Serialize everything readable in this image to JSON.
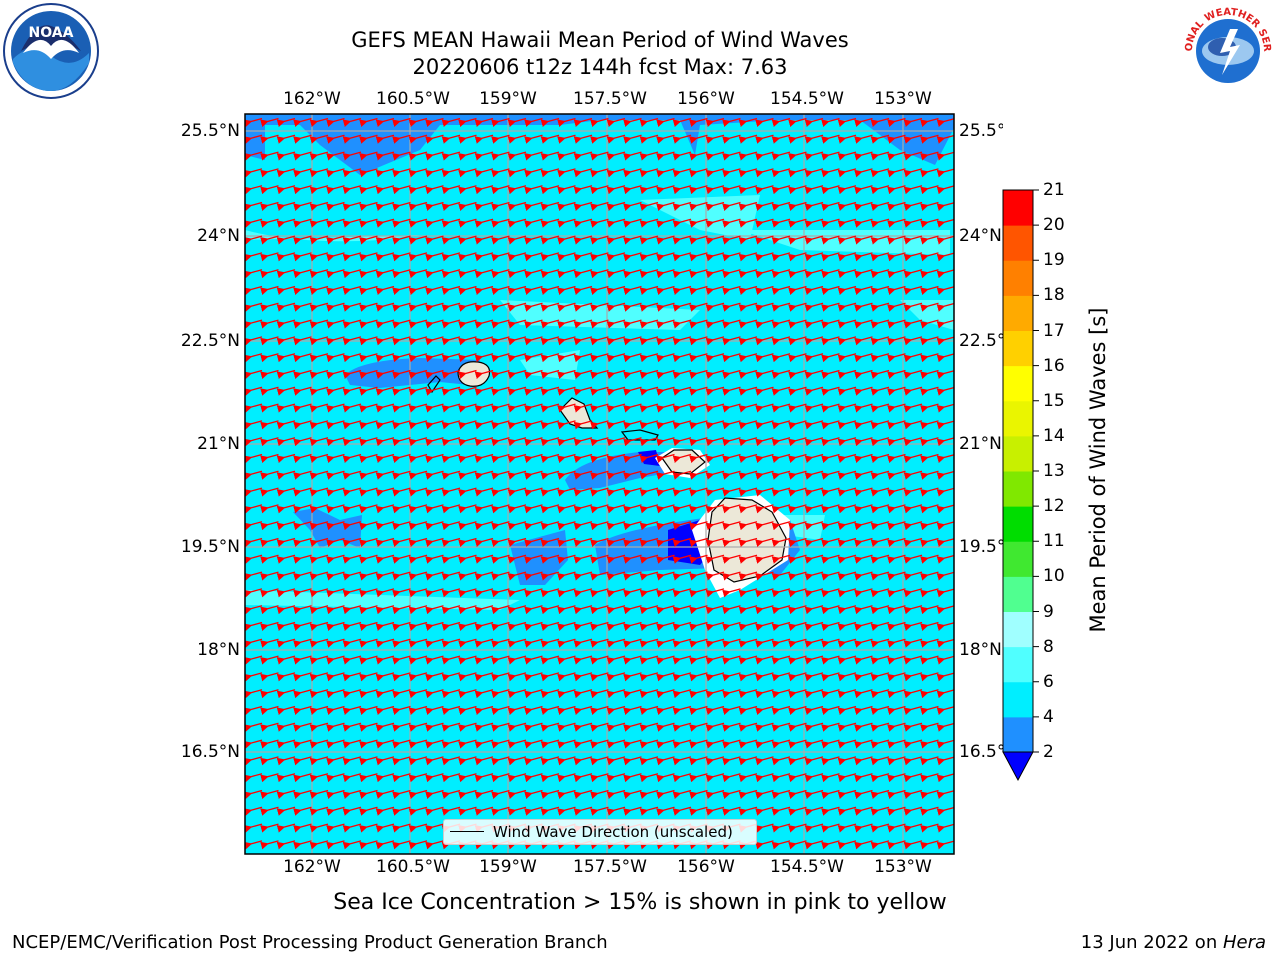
{
  "title": {
    "line1": "GEFS MEAN Hawaii Mean Period of Wind Waves",
    "line2": "20220606 t12z 144h fcst   Max: 7.63"
  },
  "logos": {
    "left": "noaa-logo",
    "left_text": "NOAA",
    "right": "nws-logo",
    "right_text": "NATIONAL WEATHER SERVICE"
  },
  "axes": {
    "lon_labels": [
      "162°W",
      "160.5°W",
      "159°W",
      "157.5°W",
      "156°W",
      "154.5°W",
      "153°W"
    ],
    "lat_labels": [
      "25.5°N",
      "24°N",
      "22.5°N",
      "21°N",
      "19.5°N",
      "18°N",
      "16.5°N"
    ],
    "lon_range": [
      -163,
      -152.2
    ],
    "lat_range": [
      15.3,
      25.9
    ]
  },
  "legend": {
    "label": "Wind Wave Direction (unscaled)"
  },
  "colorbar": {
    "title": "Mean Period of Wind Waves [s]",
    "ticks": [
      "2",
      "4",
      "6",
      "8",
      "9",
      "10",
      "11",
      "12",
      "13",
      "14",
      "15",
      "16",
      "17",
      "18",
      "19",
      "20",
      "21"
    ],
    "colors": [
      "#0040ff",
      "#1f90ff",
      "#00eeff",
      "#50ffff",
      "#a0ffff",
      "#50ff90",
      "#40e830",
      "#00dd00",
      "#80e800",
      "#c8f000",
      "#eaf500",
      "#ffff00",
      "#ffd000",
      "#ffaa00",
      "#ff8000",
      "#ff5500",
      "#ff2200",
      "#ff0000"
    ],
    "extend_color": "#0000ff"
  },
  "map_colors": {
    "ocean_light": "#00eeff",
    "ocean_pale": "#50ffff",
    "ocean_mid": "#1f90ff",
    "ocean_deep": "#0000ff",
    "land": "#ece8d8",
    "arrow": "#ff0000",
    "grid": "#aaaaaa"
  },
  "footer": {
    "note": "Sea Ice Concentration > 15% is shown in pink to yellow",
    "left": "NCEP/EMC/Verification Post Processing Product Generation Branch",
    "right_date": "13 Jun 2022 on ",
    "right_machine": "Hera"
  }
}
